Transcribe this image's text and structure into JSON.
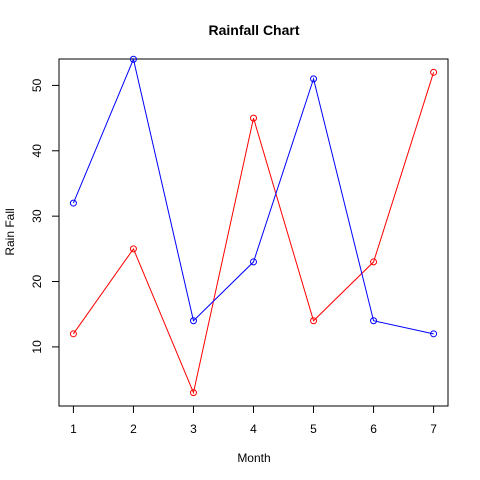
{
  "chart_data": {
    "type": "line",
    "title": "Rainfall Chart",
    "xlabel": "Month",
    "ylabel": "Rain Fall",
    "x": [
      1,
      2,
      3,
      4,
      5,
      6,
      7
    ],
    "xlim": [
      0.76,
      7.24
    ],
    "ylim": [
      0.96,
      54.04
    ],
    "xticks": [
      1,
      2,
      3,
      4,
      5,
      6,
      7
    ],
    "yticks": [
      10,
      20,
      30,
      40,
      50
    ],
    "grid": false,
    "legend": "none",
    "series": [
      {
        "color": "#ff0000",
        "marker": "open-circle",
        "values": [
          12,
          25,
          3,
          45,
          14,
          23,
          52
        ]
      },
      {
        "color": "#0000ff",
        "marker": "open-circle",
        "values": [
          32,
          54,
          14,
          23,
          51,
          14,
          12
        ]
      }
    ]
  }
}
